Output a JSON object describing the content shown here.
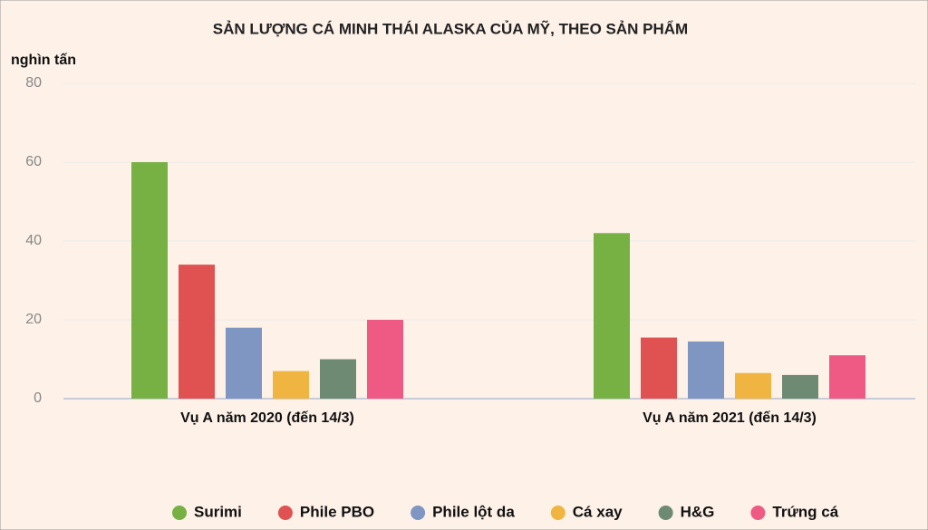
{
  "chart_data": {
    "type": "bar",
    "title": "SẢN LƯỢNG CÁ MINH THÁI ALASKA CỦA MỸ, THEO SẢN PHẨM",
    "y_label": "nghìn tấn",
    "categories": [
      "Vụ A năm 2020 (đến 14/3)",
      "Vụ A năm 2021 (đến 14/3)"
    ],
    "series": [
      {
        "name": "Surimi",
        "color": "#77b043",
        "values": [
          60,
          42
        ]
      },
      {
        "name": "Phile PBO",
        "color": "#e05252",
        "values": [
          34,
          15.5
        ]
      },
      {
        "name": "Phile lột da",
        "color": "#7f96c2",
        "values": [
          18,
          14.5
        ]
      },
      {
        "name": "Cá xay",
        "color": "#f0b540",
        "values": [
          7,
          6.5
        ]
      },
      {
        "name": "H&G",
        "color": "#6e8a72",
        "values": [
          10,
          6
        ]
      },
      {
        "name": "Trứng cá",
        "color": "#ef5a84",
        "values": [
          20,
          11
        ]
      }
    ],
    "ylim": [
      0,
      80
    ],
    "yticks": [
      0,
      20,
      40,
      60,
      80
    ],
    "grid": true,
    "legend": "bottom"
  }
}
